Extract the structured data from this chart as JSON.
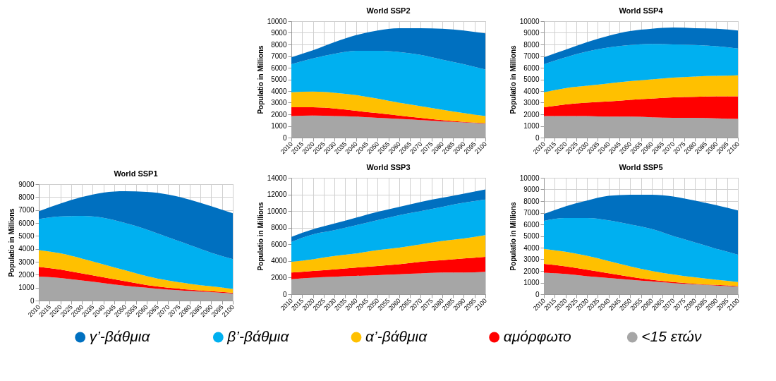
{
  "chart_data": [
    {
      "type": "area",
      "stacked": true,
      "title": "World  SSP1",
      "ylabel": "Populatio in Millions",
      "x": [
        2010,
        2020,
        2030,
        2040,
        2050,
        2060,
        2070,
        2080,
        2090,
        2100
      ],
      "xlim": [
        2010,
        2100
      ],
      "xticks": [
        2010,
        2015,
        2020,
        2025,
        2030,
        2035,
        2040,
        2045,
        2050,
        2055,
        2060,
        2065,
        2070,
        2075,
        2080,
        2085,
        2090,
        2095,
        2100
      ],
      "ylim": [
        0,
        9000
      ],
      "yticks": [
        0,
        1000,
        2000,
        3000,
        4000,
        5000,
        6000,
        7000,
        8000,
        9000
      ],
      "grid": true,
      "legend": "bottom",
      "series": [
        {
          "name": "<15 ετών",
          "color": "#a6a6a6",
          "values": [
            1850,
            1750,
            1550,
            1350,
            1150,
            1000,
            850,
            750,
            650,
            550
          ]
        },
        {
          "name": "αμόρφωτο",
          "color": "#ff0000",
          "values": [
            750,
            650,
            550,
            450,
            350,
            200,
            150,
            100,
            70,
            50
          ]
        },
        {
          "name": "α’-βάθμια",
          "color": "#ffc000",
          "values": [
            1300,
            1250,
            1150,
            1000,
            850,
            700,
            550,
            450,
            380,
            300
          ]
        },
        {
          "name": "β’-βάθμια",
          "color": "#00b0f0",
          "values": [
            2400,
            2850,
            3300,
            3600,
            3650,
            3600,
            3350,
            3000,
            2600,
            2300
          ]
        },
        {
          "name": "γ’-βάθμια",
          "color": "#0070c0",
          "values": [
            600,
            1000,
            1450,
            1950,
            2450,
            2900,
            3300,
            3500,
            3600,
            3550
          ]
        }
      ]
    },
    {
      "type": "area",
      "stacked": true,
      "title": "World  SSP2",
      "ylabel": "Populatio in Millions",
      "x": [
        2010,
        2020,
        2030,
        2040,
        2050,
        2060,
        2070,
        2080,
        2090,
        2100
      ],
      "xlim": [
        2010,
        2100
      ],
      "xticks": [
        2010,
        2015,
        2020,
        2025,
        2030,
        2035,
        2040,
        2045,
        2050,
        2055,
        2060,
        2065,
        2070,
        2075,
        2080,
        2085,
        2090,
        2095,
        2100
      ],
      "ylim": [
        0,
        10000
      ],
      "yticks": [
        0,
        1000,
        2000,
        3000,
        4000,
        5000,
        6000,
        7000,
        8000,
        9000,
        10000
      ],
      "grid": true,
      "legend": "bottom",
      "series": [
        {
          "name": "<15 ετών",
          "color": "#a6a6a6",
          "values": [
            1850,
            1900,
            1850,
            1800,
            1700,
            1600,
            1500,
            1400,
            1300,
            1200
          ]
        },
        {
          "name": "αμόρφωτο",
          "color": "#ff0000",
          "values": [
            750,
            700,
            650,
            500,
            400,
            300,
            200,
            100,
            50,
            50
          ]
        },
        {
          "name": "α’-βάθμια",
          "color": "#ffc000",
          "values": [
            1300,
            1350,
            1350,
            1350,
            1250,
            1100,
            1000,
            900,
            750,
            600
          ]
        },
        {
          "name": "β’-βάθμια",
          "color": "#00b0f0",
          "values": [
            2400,
            2850,
            3350,
            3800,
            4100,
            4350,
            4400,
            4300,
            4200,
            4000
          ]
        },
        {
          "name": "γ’-βάθμια",
          "color": "#0070c0",
          "values": [
            600,
            700,
            1000,
            1350,
            1750,
            2050,
            2300,
            2650,
            2900,
            3100
          ]
        }
      ]
    },
    {
      "type": "area",
      "stacked": true,
      "title": "World  SSP3",
      "ylabel": "Populatio in Millions",
      "x": [
        2010,
        2020,
        2030,
        2040,
        2050,
        2060,
        2070,
        2080,
        2090,
        2100
      ],
      "xlim": [
        2010,
        2100
      ],
      "xticks": [
        2010,
        2015,
        2020,
        2025,
        2030,
        2035,
        2040,
        2045,
        2050,
        2055,
        2060,
        2065,
        2070,
        2075,
        2080,
        2085,
        2090,
        2095,
        2100
      ],
      "ylim": [
        0,
        14000
      ],
      "yticks": [
        0,
        2000,
        4000,
        6000,
        8000,
        10000,
        12000,
        14000
      ],
      "grid": true,
      "legend": "bottom",
      "series": [
        {
          "name": "<15 ετών",
          "color": "#a6a6a6",
          "values": [
            1800,
            2000,
            2100,
            2200,
            2300,
            2400,
            2500,
            2600,
            2600,
            2700
          ]
        },
        {
          "name": "αμόρφωτο",
          "color": "#ff0000",
          "values": [
            800,
            800,
            900,
            1000,
            1100,
            1200,
            1400,
            1500,
            1700,
            1800
          ]
        },
        {
          "name": "α’-βάθμια",
          "color": "#ffc000",
          "values": [
            1300,
            1400,
            1600,
            1700,
            1900,
            2000,
            2100,
            2300,
            2400,
            2600
          ]
        },
        {
          "name": "β’-βάθμια",
          "color": "#00b0f0",
          "values": [
            2400,
            3000,
            3100,
            3400,
            3600,
            3900,
            4000,
            4100,
            4300,
            4300
          ]
        },
        {
          "name": "γ’-βάθμια",
          "color": "#0070c0",
          "values": [
            600,
            600,
            800,
            900,
            1000,
            1000,
            1100,
            1100,
            1100,
            1200
          ]
        }
      ]
    },
    {
      "type": "area",
      "stacked": true,
      "title": "World  SSP4",
      "ylabel": "Populatio in Millions",
      "x": [
        2010,
        2020,
        2030,
        2040,
        2050,
        2060,
        2070,
        2080,
        2090,
        2100
      ],
      "xlim": [
        2010,
        2100
      ],
      "xticks": [
        2010,
        2015,
        2020,
        2025,
        2030,
        2035,
        2040,
        2045,
        2050,
        2055,
        2060,
        2065,
        2070,
        2075,
        2080,
        2085,
        2090,
        2095,
        2100
      ],
      "ylim": [
        0,
        10000
      ],
      "yticks": [
        0,
        1000,
        2000,
        3000,
        4000,
        5000,
        6000,
        7000,
        8000,
        9000,
        10000
      ],
      "grid": true,
      "legend": "bottom",
      "series": [
        {
          "name": "<15 ετών",
          "color": "#a6a6a6",
          "values": [
            1850,
            1850,
            1850,
            1800,
            1800,
            1750,
            1700,
            1700,
            1650,
            1600
          ]
        },
        {
          "name": "αμόρφωτο",
          "color": "#ff0000",
          "values": [
            750,
            1000,
            1150,
            1300,
            1450,
            1600,
            1750,
            1800,
            1900,
            1950
          ]
        },
        {
          "name": "α’-βάθμια",
          "color": "#ffc000",
          "values": [
            1300,
            1400,
            1450,
            1550,
            1600,
            1650,
            1700,
            1750,
            1750,
            1800
          ]
        },
        {
          "name": "β’-βάθμια",
          "color": "#00b0f0",
          "values": [
            2400,
            2650,
            2950,
            3100,
            3100,
            3050,
            2850,
            2700,
            2550,
            2300
          ]
        },
        {
          "name": "γ’-βάθμια",
          "color": "#0070c0",
          "values": [
            600,
            650,
            800,
            1000,
            1200,
            1300,
            1450,
            1450,
            1500,
            1550
          ]
        }
      ]
    },
    {
      "type": "area",
      "stacked": true,
      "title": "World  SSP5",
      "ylabel": "Populatio in Millions",
      "x": [
        2010,
        2020,
        2030,
        2040,
        2050,
        2060,
        2070,
        2080,
        2090,
        2100
      ],
      "xlim": [
        2010,
        2100
      ],
      "xticks": [
        2010,
        2015,
        2020,
        2025,
        2030,
        2035,
        2040,
        2045,
        2050,
        2055,
        2060,
        2065,
        2070,
        2075,
        2080,
        2085,
        2090,
        2095,
        2100
      ],
      "ylim": [
        0,
        10000
      ],
      "yticks": [
        0,
        1000,
        2000,
        3000,
        4000,
        5000,
        6000,
        7000,
        8000,
        9000,
        10000
      ],
      "grid": true,
      "legend": "bottom",
      "series": [
        {
          "name": "<15 ετών",
          "color": "#a6a6a6",
          "values": [
            1850,
            1750,
            1550,
            1400,
            1250,
            1100,
            950,
            850,
            750,
            650
          ]
        },
        {
          "name": "αμόρφωτο",
          "color": "#ff0000",
          "values": [
            750,
            650,
            550,
            400,
            250,
            150,
            100,
            50,
            50,
            50
          ]
        },
        {
          "name": "α’-βάθμια",
          "color": "#ffc000",
          "values": [
            1300,
            1250,
            1200,
            1050,
            900,
            750,
            650,
            550,
            450,
            350
          ]
        },
        {
          "name": "β’-βάθμια",
          "color": "#00b0f0",
          "values": [
            2400,
            2900,
            3250,
            3500,
            3600,
            3600,
            3300,
            3000,
            2650,
            2350
          ]
        },
        {
          "name": "γ’-βάθμια",
          "color": "#0070c0",
          "values": [
            600,
            1000,
            1500,
            2100,
            2550,
            2950,
            3400,
            3600,
            3750,
            3800
          ]
        }
      ]
    }
  ]
}
